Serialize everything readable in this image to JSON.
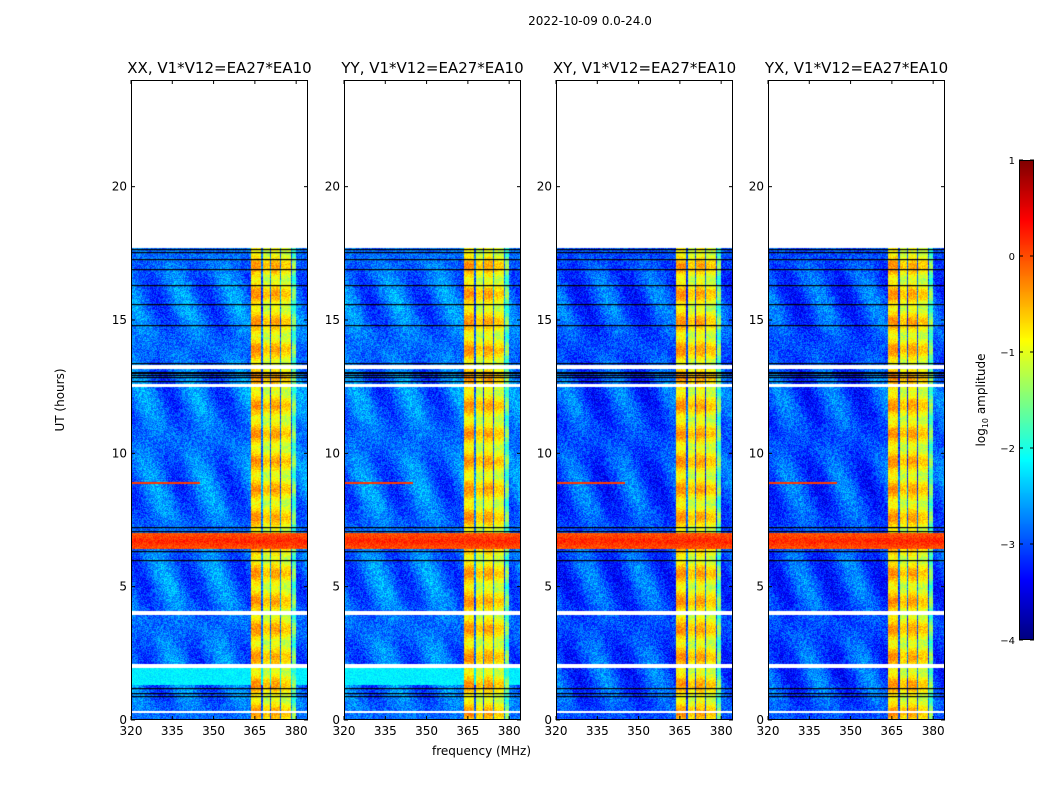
{
  "figure": {
    "suptitle": "2022-10-09 0.0-24.0",
    "ylabel": "UT (hours)",
    "xlabel": "frequency (MHz)",
    "colorbar": {
      "label_prefix": "log",
      "label_sub": "10",
      "label_suffix": " amplitude",
      "range": [
        -4,
        1
      ],
      "ticks": [
        "1",
        "0",
        "−1",
        "−2",
        "−3",
        "−4"
      ],
      "tick_values": [
        1,
        0,
        -1,
        -2,
        -3,
        -4
      ],
      "colormap": "jet"
    }
  },
  "chart_data": [
    {
      "type": "heatmap",
      "title": "XX, V1*V12=EA27*EA10",
      "polarization": "XX",
      "cyan_band": true,
      "red_line": true
    },
    {
      "type": "heatmap",
      "title": "YY, V1*V12=EA27*EA10",
      "polarization": "YY",
      "cyan_band": true,
      "red_line": true
    },
    {
      "type": "heatmap",
      "title": "XY, V1*V12=EA27*EA10",
      "polarization": "XY",
      "cyan_band": false,
      "red_line": true
    },
    {
      "type": "heatmap",
      "title": "YX, V1*V12=EA27*EA10",
      "polarization": "YX",
      "cyan_band": false,
      "red_line": true
    }
  ],
  "shared": {
    "xlim": [
      320,
      384.3
    ],
    "ylim": [
      0,
      24
    ],
    "xticks": [
      320,
      335,
      350,
      365,
      380
    ],
    "xtick_labels": [
      "320",
      "335",
      "350",
      "365",
      "380"
    ],
    "yticks": [
      0,
      5,
      10,
      15,
      20
    ],
    "ytick_labels": [
      "0",
      "5",
      "10",
      "15",
      "20"
    ],
    "data_end_hours": 17.7,
    "background_log_amp": -3.0,
    "rfi_strips_mhz": [
      [
        363.5,
        367.2,
        -0.6
      ],
      [
        367.8,
        370.4,
        -0.9
      ],
      [
        371.0,
        374.0,
        -0.7
      ],
      [
        374.6,
        378.0,
        -0.9
      ],
      [
        378.5,
        380.0,
        -1.6
      ]
    ],
    "strong_rfi_hours": [
      6.4,
      7.0,
      0.2
    ],
    "cyan_band_hours": [
      1.3,
      2.0,
      -2.2
    ],
    "red_line_hours": 8.9,
    "red_line_mhz": [
      320,
      345
    ],
    "gap_hours": [
      [
        0.25,
        0.35
      ],
      [
        1.95,
        2.1
      ],
      [
        3.95,
        4.1
      ],
      [
        13.15,
        13.3
      ],
      [
        12.5,
        12.6
      ]
    ],
    "flag_lines_hours": [
      0.9,
      1.0,
      1.2,
      6.0,
      6.35,
      7.1,
      7.25,
      12.7,
      12.85,
      12.95,
      13.0,
      13.05,
      13.4,
      14.8,
      15.6,
      16.3,
      16.9,
      17.3,
      17.55,
      17.65
    ]
  }
}
